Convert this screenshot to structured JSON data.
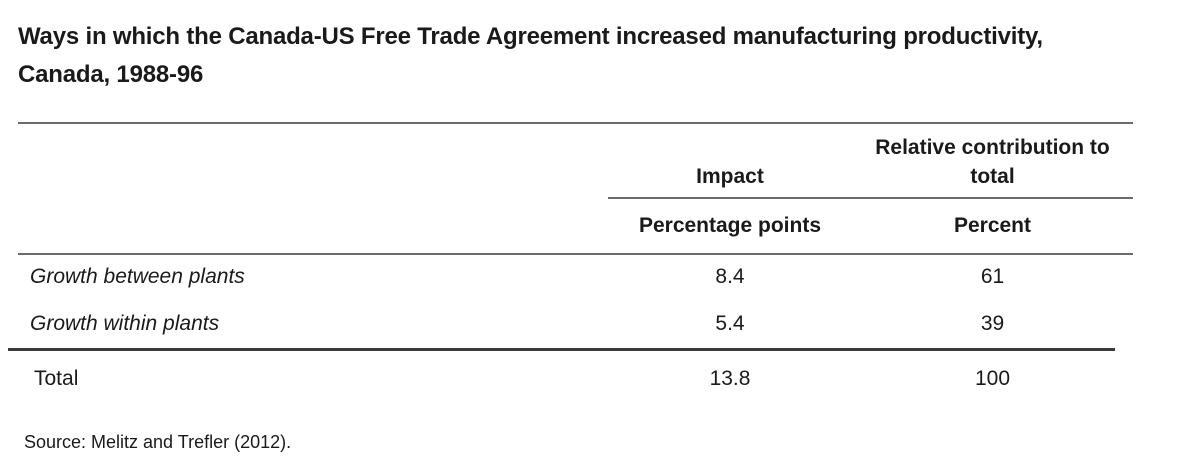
{
  "title": "Ways in which the Canada-US Free Trade Agreement increased manufacturing productivity, Canada, 1988-96",
  "table": {
    "headers": {
      "impact": "Impact",
      "relative": "Relative contribution to total",
      "impact_unit": "Percentage points",
      "relative_unit": "Percent"
    },
    "rows": [
      {
        "label": "Growth between plants",
        "impact": "8.4",
        "relative": "61"
      },
      {
        "label": "Growth within plants",
        "impact": "5.4",
        "relative": "39"
      }
    ],
    "total": {
      "label": "Total",
      "impact": "13.8",
      "relative": "100"
    }
  },
  "source": "Source: Melitz and Trefler (2012)."
}
